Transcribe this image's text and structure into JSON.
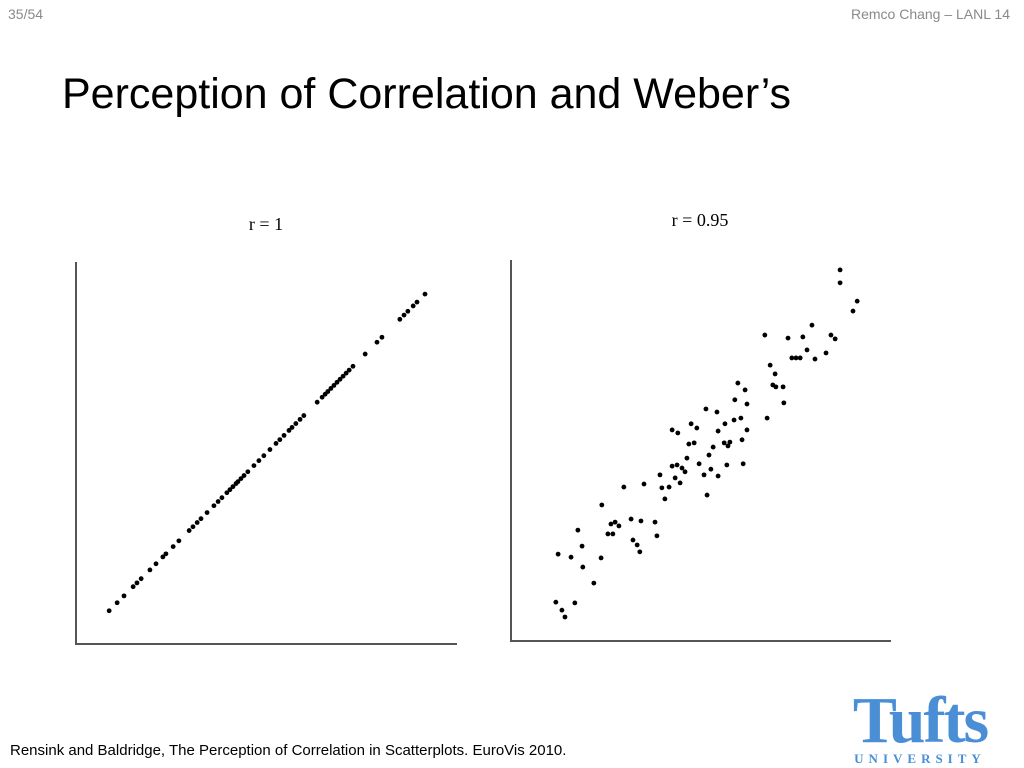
{
  "header": {
    "page": "35/54",
    "author": "Remco Chang – LANL 14"
  },
  "title": "Perception of Correlation and Weber’s",
  "chart_data": [
    {
      "type": "scatter",
      "title": "r = 1",
      "color": "#000000",
      "xlim": [
        0,
        100
      ],
      "ylim": [
        0,
        100
      ],
      "x": [
        8.7,
        10.8,
        12.6,
        15.0,
        16.0,
        17.1,
        19.4,
        21.0,
        22.8,
        23.6,
        25.5,
        27.0,
        29.7,
        30.7,
        31.8,
        32.8,
        34.4,
        36.2,
        37.3,
        38.3,
        39.6,
        40.4,
        41.2,
        42.0,
        42.5,
        43.3,
        44.1,
        45.1,
        46.7,
        48.0,
        49.3,
        50.9,
        52.5,
        53.5,
        54.6,
        55.9,
        56.7,
        57.7,
        58.8,
        59.8,
        63.3,
        64.6,
        65.4,
        66.1,
        66.9,
        67.7,
        68.5,
        69.3,
        70.1,
        70.9,
        71.7,
        72.7,
        75.9,
        79.0,
        80.3,
        85.0,
        86.1,
        87.1,
        88.5,
        89.5,
        91.6
      ],
      "values": [
        8.7,
        10.8,
        12.6,
        15.0,
        16.0,
        17.1,
        19.4,
        21.0,
        22.8,
        23.6,
        25.5,
        27.0,
        29.7,
        30.7,
        31.8,
        32.8,
        34.4,
        36.2,
        37.3,
        38.3,
        39.6,
        40.4,
        41.2,
        42.0,
        42.5,
        43.3,
        44.1,
        45.1,
        46.7,
        48.0,
        49.3,
        50.9,
        52.5,
        53.5,
        54.6,
        55.9,
        56.7,
        57.7,
        58.8,
        59.8,
        63.3,
        64.6,
        65.4,
        66.1,
        66.9,
        67.7,
        68.5,
        69.3,
        70.1,
        70.9,
        71.7,
        72.7,
        75.9,
        79.0,
        80.3,
        85.0,
        86.1,
        87.1,
        88.5,
        89.5,
        91.6
      ]
    },
    {
      "type": "scatter",
      "title": "r = 0.95",
      "color": "#000000",
      "xlim": [
        0,
        100
      ],
      "ylim": [
        0,
        100
      ],
      "x": [
        11.8,
        13.4,
        14.2,
        16.8,
        12.4,
        15.8,
        17.6,
        18.9,
        21.8,
        18.7,
        23.7,
        23.9,
        25.5,
        26.3,
        27.4,
        28.4,
        26.8,
        31.6,
        32.1,
        33.2,
        33.9,
        34.2,
        37.9,
        38.4,
        29.7,
        35.0,
        39.2,
        39.7,
        40.5,
        41.6,
        42.4,
        43.2,
        43.7,
        44.5,
        45.0,
        45.8,
        46.3,
        46.8,
        47.4,
        42.4,
        43.9,
        48.2,
        48.9,
        49.5,
        50.8,
        51.6,
        52.1,
        52.6,
        53.2,
        51.3,
        54.2,
        54.5,
        54.5,
        56.1,
        56.8,
        56.3,
        57.1,
        57.6,
        58.7,
        58.9,
        59.7,
        60.8,
        61.1,
        60.5,
        61.6,
        62.1,
        62.1,
        66.8,
        67.4,
        68.2,
        68.9,
        69.5,
        69.7,
        71.6,
        71.8,
        72.9,
        73.9,
        75.0,
        76.1,
        76.8,
        77.9,
        79.2,
        80.0,
        82.9,
        84.2,
        85.3,
        86.6,
        86.6,
        90.0,
        91.1
      ],
      "values": [
        10.2,
        8.1,
        6.3,
        10.0,
        22.8,
        22.0,
        29.1,
        19.4,
        15.2,
        24.9,
        21.8,
        35.7,
        28.1,
        30.7,
        31.2,
        30.2,
        28.1,
        32.0,
        26.5,
        25.2,
        23.4,
        31.5,
        31.2,
        27.6,
        40.4,
        41.2,
        43.6,
        40.2,
        37.3,
        40.4,
        45.9,
        42.8,
        46.2,
        41.5,
        45.4,
        44.4,
        48.0,
        51.7,
        57.0,
        55.4,
        54.6,
        52.0,
        55.9,
        46.5,
        43.6,
        38.3,
        48.8,
        45.1,
        50.9,
        60.9,
        60.1,
        55.1,
        43.3,
        52.0,
        46.2,
        57.0,
        51.2,
        52.2,
        58.0,
        63.3,
        67.7,
        52.8,
        46.5,
        58.5,
        65.9,
        62.2,
        55.4,
        80.3,
        58.5,
        72.4,
        67.2,
        70.1,
        66.7,
        66.7,
        62.5,
        79.5,
        74.3,
        74.3,
        74.3,
        79.8,
        76.4,
        82.9,
        74.0,
        75.6,
        80.3,
        79.3,
        97.4,
        94.0,
        86.6,
        89.2
      ]
    }
  ],
  "footer": {
    "citation": "Rensink and Baldridge, The Perception of Correlation in Scatterplots. EuroVis 2010."
  },
  "logo": {
    "name": "Tufts",
    "subtitle": "UNIVERSITY"
  }
}
